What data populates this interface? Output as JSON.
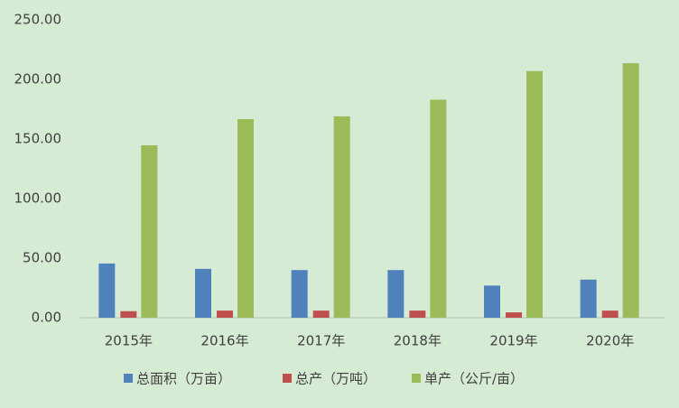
{
  "chart_data": {
    "type": "bar",
    "categories": [
      "2015年",
      "2016年",
      "2017年",
      "2018年",
      "2019年",
      "2020年"
    ],
    "series": [
      {
        "name": "总面积（万亩）",
        "color": "#4f81bd",
        "values": [
          45.5,
          41,
          40,
          40,
          27,
          32
        ]
      },
      {
        "name": "总产（万吨）",
        "color": "#c0504d",
        "values": [
          5.5,
          6,
          6,
          6,
          4.5,
          6
        ]
      },
      {
        "name": "单产（公斤/亩）",
        "color": "#9bbb59",
        "values": [
          144.7,
          166.7,
          169,
          183,
          207,
          213.6
        ]
      }
    ],
    "ylim": [
      0,
      250
    ],
    "yticks": [
      {
        "value": 0,
        "label": "0.00"
      },
      {
        "value": 50,
        "label": "50.00"
      },
      {
        "value": 100,
        "label": "100.00"
      },
      {
        "value": 150,
        "label": "150.00"
      },
      {
        "value": 200,
        "label": "200.00"
      },
      {
        "value": 250,
        "label": "250.00"
      }
    ],
    "grid": false,
    "legend": "bottom"
  }
}
